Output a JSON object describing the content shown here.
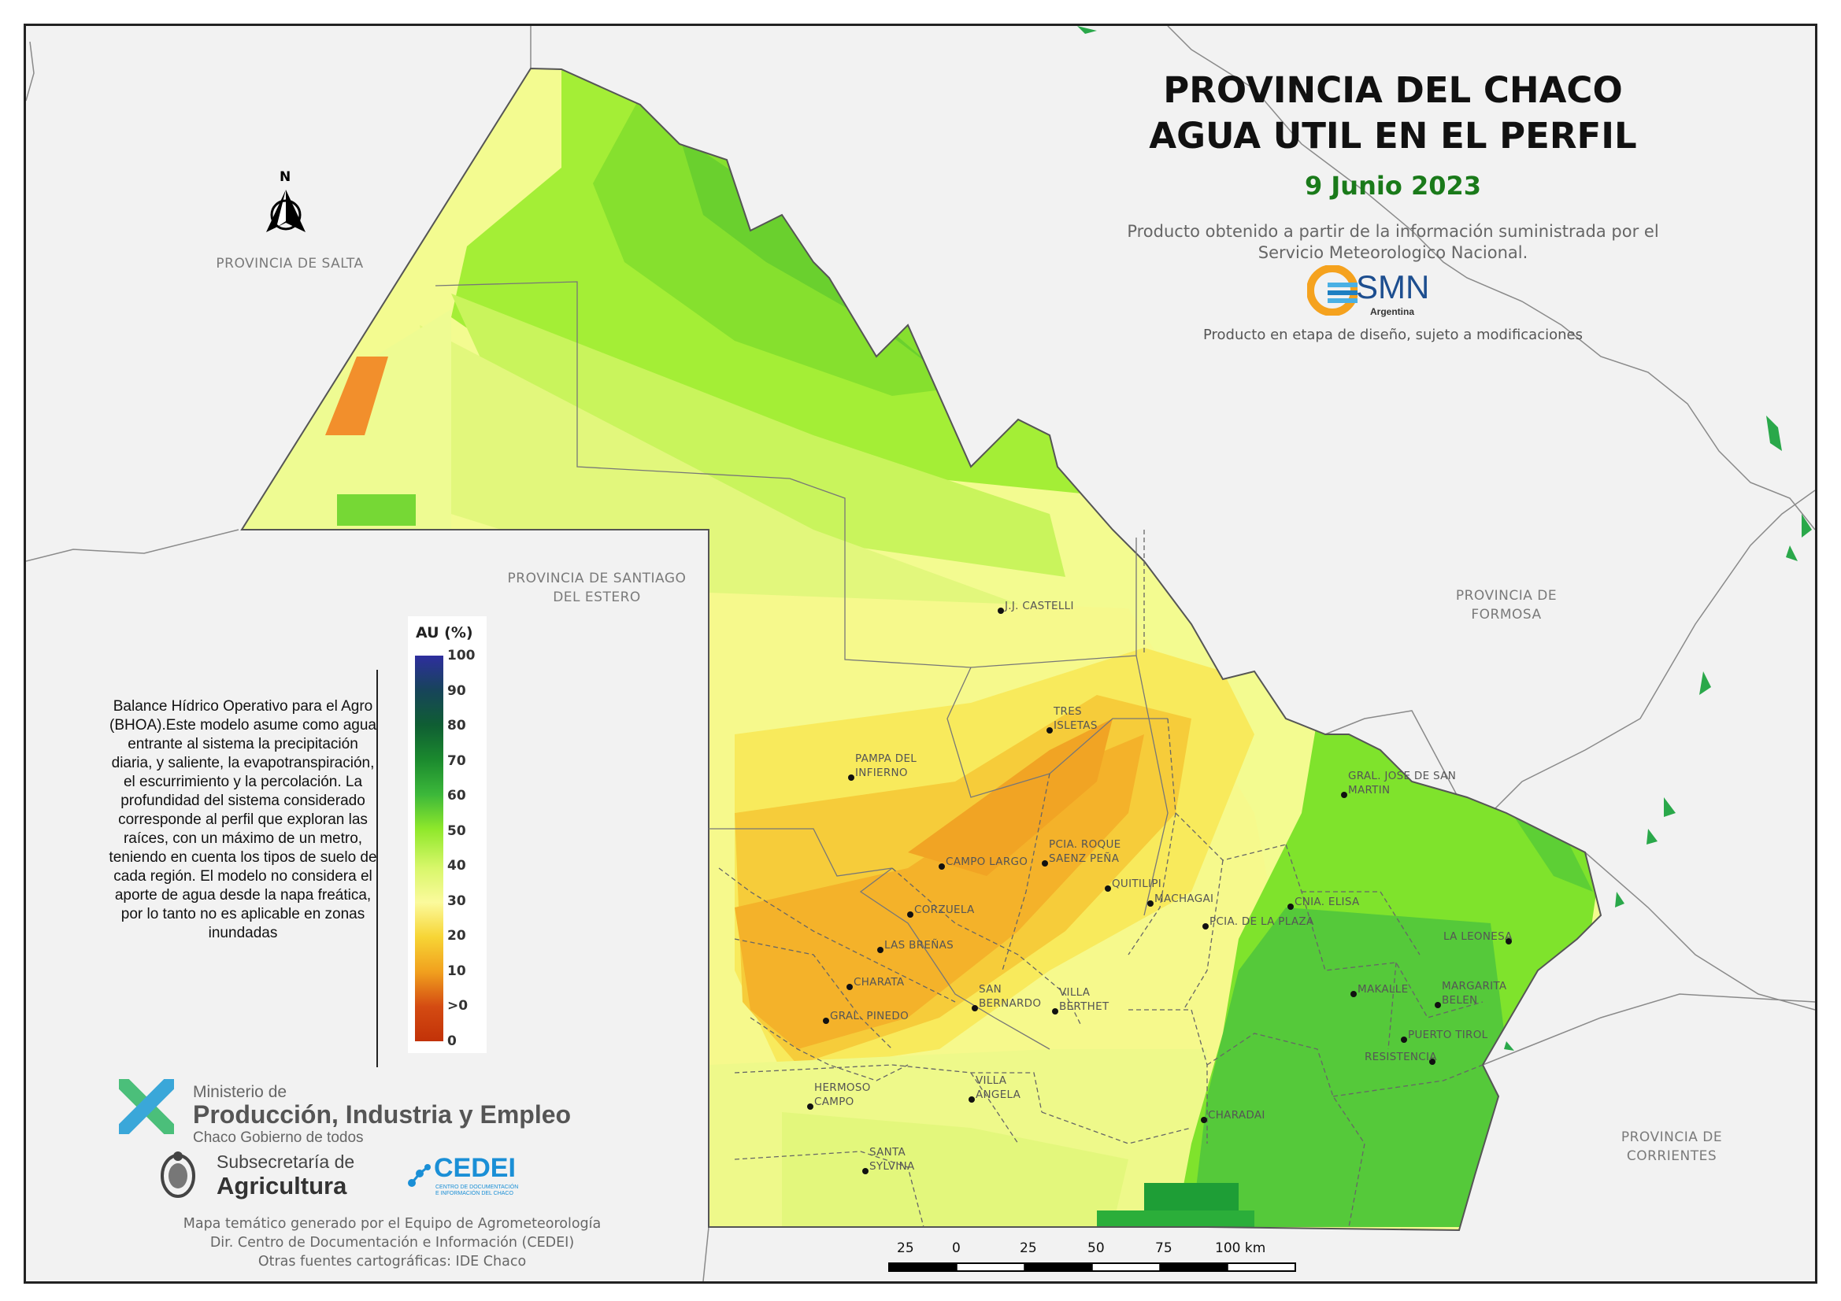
{
  "map": {
    "title_line1": "PROVINCIA DEL CHACO",
    "title_line2": "AGUA UTIL EN EL PERFIL",
    "date": "9 Junio 2023",
    "source_text": "Producto obtenido a partir de la información suministrada por el Servicio Meteorologico Nacional.",
    "smn_logo_text": "SMN",
    "smn_logo_sub": "Argentina",
    "design_note": "Producto en etapa de diseño, sujeto a modificaciones",
    "north_label": "N"
  },
  "neighbors": {
    "salta": "PROVINCIA DE SALTA",
    "santiago": "PROVINCIA DE SANTIAGO DEL ESTERO",
    "formosa": "PROVINCIA DE FORMOSA",
    "corrientes": "PROVINCIA DE CORRIENTES"
  },
  "description": "Balance Hídrico Operativo para el Agro (BHOA).Este modelo asume como agua entrante al sistema la precipitación diaria, y saliente, la evapotranspiración, el escurrimiento y la percolación. La profundidad del sistema considerado corresponde al perfil que exploran las raíces, con un máximo de un metro, teniendo en cuenta los tipos de suelo de cada región. El modelo no considera el aporte de agua desde la napa freática, por lo tanto no es aplicable en zonas inundadas",
  "legend": {
    "title": "AU (%)",
    "ticks": [
      "100",
      "90",
      "80",
      "70",
      "60",
      "50",
      "40",
      "30",
      "20",
      "10",
      ">0",
      "0"
    ],
    "colors": [
      "#2e2e9e",
      "#17445a",
      "#0f5e33",
      "#1b8a2e",
      "#3cb83a",
      "#8fe82b",
      "#d8f76a",
      "#fbfa9c",
      "#f7d535",
      "#f1a01e",
      "#d44b12",
      "#c23208"
    ]
  },
  "cities": [
    "J.J. CASTELLI",
    "TRES ISLETAS",
    "PAMPA DEL INFIERNO",
    "GRAL. JOSE DE SAN MARTIN",
    "CAMPO LARGO",
    "PCIA. ROQUE SAENZ PEÑA",
    "QUITILIPI",
    "MACHAGAI",
    "CNIA. ELISA",
    "CORZUELA",
    "PCIA. DE LA PLAZA",
    "LA LEONESA",
    "LAS BREÑAS",
    "CHARATA",
    "SAN BERNARDO",
    "VILLA BERTHET",
    "MAKALLE",
    "MARGARITA BELEN",
    "GRAL. PINEDO",
    "PUERTO TIROL",
    "RESISTENCIA",
    "HERMOSO CAMPO",
    "VILLA ANGELA",
    "CHARADAI",
    "SANTA SYLVINA"
  ],
  "scale": {
    "labels": [
      "25",
      "0",
      "25",
      "50",
      "75",
      "100 km"
    ]
  },
  "ministerio": {
    "line1": "Ministerio de",
    "line2": "Producción, Industria y Empleo",
    "line3": "Chaco Gobierno de todos"
  },
  "subsecretaria": {
    "line1": "Subsecretaría de",
    "line2": "Agricultura"
  },
  "cedei": {
    "name": "CEDEI",
    "sub": "CENTRO DE DOCUMENTACIÓN E INFORMACIÓN DEL CHACO"
  },
  "credits": {
    "line1": "Mapa temático generado por el Equipo de Agrometeorología",
    "line2": "Dir. Centro de Documentación e Información (CEDEI)",
    "line3": "Otras fuentes cartográficas: IDE Chaco"
  }
}
